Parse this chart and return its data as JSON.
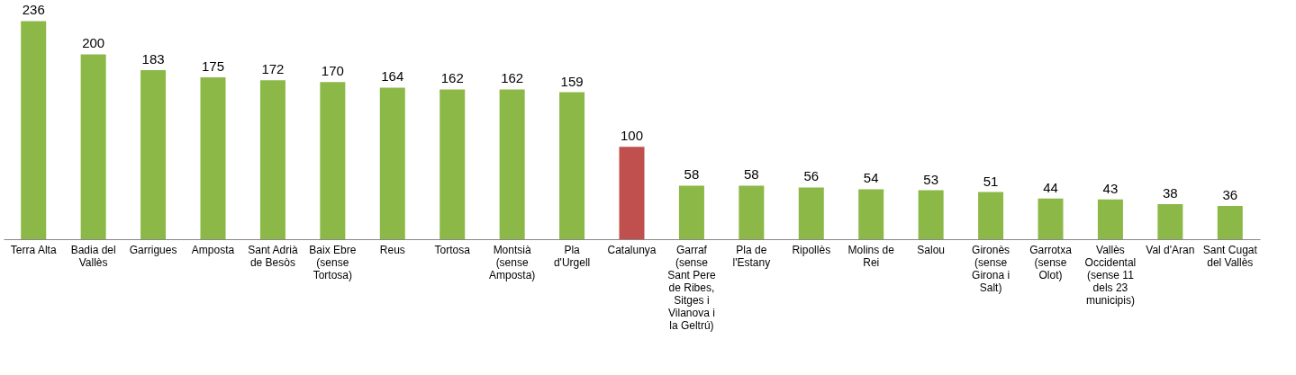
{
  "chart_data": {
    "type": "bar",
    "categories": [
      "Terra Alta",
      "Badia del Vallès",
      "Garrigues",
      "Amposta",
      "Sant Adrià de Besòs",
      "Baix Ebre (sense Tortosa)",
      "Reus",
      "Tortosa",
      "Montsià (sense Amposta)",
      "Pla d'Urgell",
      "Catalunya",
      "Garraf (sense Sant Pere de Ribes, Sitges i Vilanova i la Geltrú)",
      "Pla de l'Estany",
      "Ripollès",
      "Molins de Rei",
      "Salou",
      "Gironès (sense Girona i Salt)",
      "Garrotxa (sense Olot)",
      "Vallès Occidental (sense 11 dels 23 municipis)",
      "Val d'Aran",
      "Sant Cugat del Vallès"
    ],
    "values": [
      236,
      200,
      183,
      175,
      172,
      170,
      164,
      162,
      162,
      159,
      100,
      58,
      58,
      56,
      54,
      53,
      51,
      44,
      43,
      38,
      36
    ],
    "colors": [
      "#8cb847",
      "#8cb847",
      "#8cb847",
      "#8cb847",
      "#8cb847",
      "#8cb847",
      "#8cb847",
      "#8cb847",
      "#8cb847",
      "#8cb847",
      "#c0504d",
      "#8cb847",
      "#8cb847",
      "#8cb847",
      "#8cb847",
      "#8cb847",
      "#8cb847",
      "#8cb847",
      "#8cb847",
      "#8cb847",
      "#8cb847"
    ],
    "data_labels": true,
    "grid": false
  }
}
